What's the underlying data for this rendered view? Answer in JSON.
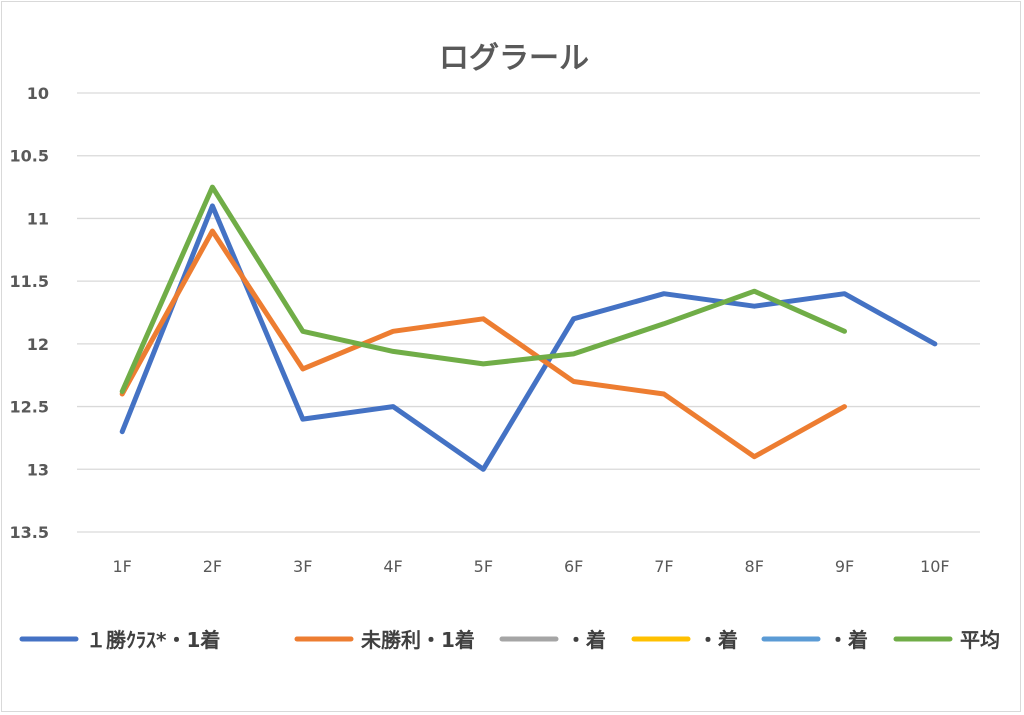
{
  "chart_data": {
    "type": "line",
    "title": "ログラール",
    "categories": [
      "1F",
      "2F",
      "3F",
      "4F",
      "5F",
      "6F",
      "7F",
      "8F",
      "9F",
      "10F"
    ],
    "ylim": [
      13.5,
      10
    ],
    "y_axis_reversed": true,
    "yticks": [
      "10",
      "10.5",
      "11",
      "11.5",
      "12",
      "12.5",
      "13",
      "13.5"
    ],
    "ytick_values": [
      10,
      10.5,
      11,
      11.5,
      12,
      12.5,
      13,
      13.5
    ],
    "grid": true,
    "legend_position": "bottom",
    "series": [
      {
        "name": "１勝ｸﾗｽ*・1着",
        "color": "#4472c4",
        "values": [
          12.7,
          10.9,
          12.6,
          12.5,
          13.0,
          11.8,
          11.6,
          11.7,
          11.6,
          12.0
        ]
      },
      {
        "name": "未勝利・1着",
        "color": "#ed7d31",
        "values": [
          12.4,
          11.1,
          12.2,
          11.9,
          11.8,
          12.3,
          12.4,
          12.9,
          12.5,
          null
        ]
      },
      {
        "name": "・着",
        "color": "#a5a5a5",
        "values": [
          null,
          null,
          null,
          null,
          null,
          null,
          null,
          null,
          null,
          null
        ]
      },
      {
        "name": "・着",
        "color": "#ffc000",
        "values": [
          null,
          null,
          null,
          null,
          null,
          null,
          null,
          null,
          null,
          null
        ]
      },
      {
        "name": "・着",
        "color": "#5b9bd5",
        "values": [
          null,
          null,
          null,
          null,
          null,
          null,
          null,
          null,
          null,
          null
        ]
      },
      {
        "name": "平均",
        "color": "#70ad47",
        "values": [
          12.38,
          10.75,
          11.9,
          12.06,
          12.16,
          12.08,
          11.84,
          11.58,
          11.9,
          null
        ]
      }
    ]
  }
}
